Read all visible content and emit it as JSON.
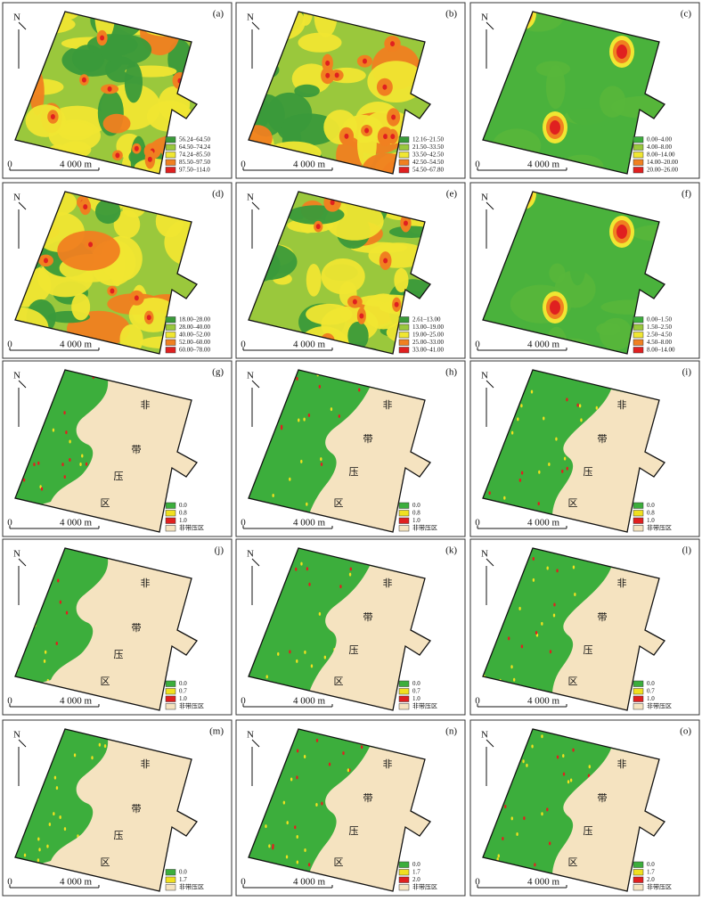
{
  "common": {
    "north": "N",
    "scale_zero": "0",
    "scale_label": "4 000 m",
    "zone_text": [
      "非",
      "带",
      "压",
      "区"
    ]
  },
  "panels": [
    {
      "label": "(a)",
      "legend": [
        {
          "label": "56.24–64.50",
          "color": "#3a9a3a"
        },
        {
          "label": "64.50–74.24",
          "color": "#9ac83c"
        },
        {
          "label": "74.24–85.50",
          "color": "#f0e632"
        },
        {
          "label": "85.50–97.50",
          "color": "#f08020"
        },
        {
          "label": "97.50–114.0",
          "color": "#e02020"
        }
      ]
    },
    {
      "label": "(b)",
      "legend": [
        {
          "label": "12.16–21.50",
          "color": "#3a9a3a"
        },
        {
          "label": "21.50–33.50",
          "color": "#9ac83c"
        },
        {
          "label": "33.50–42.50",
          "color": "#f0e632"
        },
        {
          "label": "42.50–54.50",
          "color": "#f08020"
        },
        {
          "label": "54.50–67.80",
          "color": "#e02020"
        }
      ]
    },
    {
      "label": "(c)",
      "legend": [
        {
          "label": "0.00–4.00",
          "color": "#3cae3c"
        },
        {
          "label": "4.00–8.00",
          "color": "#9ac83c"
        },
        {
          "label": "8.00–14.00",
          "color": "#f0e632"
        },
        {
          "label": "14.00–20.00",
          "color": "#f08020"
        },
        {
          "label": "20.00–26.00",
          "color": "#e02020"
        }
      ]
    },
    {
      "label": "(d)",
      "legend": [
        {
          "label": "18.00–28.00",
          "color": "#3a9a3a"
        },
        {
          "label": "28.00–40.00",
          "color": "#9ac83c"
        },
        {
          "label": "40.00–52.00",
          "color": "#f0e632"
        },
        {
          "label": "52.00–60.00",
          "color": "#f08020"
        },
        {
          "label": "60.00–78.00",
          "color": "#e02020"
        }
      ]
    },
    {
      "label": "(e)",
      "legend": [
        {
          "label": "2.61–13.00",
          "color": "#3a9a3a"
        },
        {
          "label": "13.00–19.00",
          "color": "#9ac83c"
        },
        {
          "label": "19.00–25.00",
          "color": "#f0e632"
        },
        {
          "label": "25.00–33.00",
          "color": "#f08020"
        },
        {
          "label": "33.00–41.00",
          "color": "#e02020"
        }
      ]
    },
    {
      "label": "(f)",
      "legend": [
        {
          "label": "0.00–1.50",
          "color": "#3cae3c"
        },
        {
          "label": "1.50–2.50",
          "color": "#9ac83c"
        },
        {
          "label": "2.50–4.50",
          "color": "#f0e632"
        },
        {
          "label": "4.50–8.00",
          "color": "#f08020"
        },
        {
          "label": "8.00–14.00",
          "color": "#e02020"
        }
      ]
    },
    {
      "label": "(g)",
      "legend": [
        {
          "label": "0.0",
          "color": "#3cae3c"
        },
        {
          "label": "0.8",
          "color": "#f0e020"
        },
        {
          "label": "1.0",
          "color": "#e02020"
        },
        {
          "label": "非带压区",
          "color": "#f5e3c0"
        }
      ]
    },
    {
      "label": "(h)",
      "legend": [
        {
          "label": "0.0",
          "color": "#3cae3c"
        },
        {
          "label": "0.8",
          "color": "#f0e020"
        },
        {
          "label": "1.0",
          "color": "#e02020"
        },
        {
          "label": "非带压区",
          "color": "#f5e3c0"
        }
      ]
    },
    {
      "label": "(i)",
      "legend": [
        {
          "label": "0.0",
          "color": "#3cae3c"
        },
        {
          "label": "0.8",
          "color": "#f0e020"
        },
        {
          "label": "1.0",
          "color": "#e02020"
        },
        {
          "label": "非带压区",
          "color": "#f5e3c0"
        }
      ]
    },
    {
      "label": "(j)",
      "legend": [
        {
          "label": "0.0",
          "color": "#3cae3c"
        },
        {
          "label": "0.7",
          "color": "#f0e020"
        },
        {
          "label": "1.0",
          "color": "#e02020"
        },
        {
          "label": "非带压区",
          "color": "#f5e3c0"
        }
      ]
    },
    {
      "label": "(k)",
      "legend": [
        {
          "label": "0.0",
          "color": "#3cae3c"
        },
        {
          "label": "0.7",
          "color": "#f0e020"
        },
        {
          "label": "1.0",
          "color": "#e02020"
        },
        {
          "label": "非带压区",
          "color": "#f5e3c0"
        }
      ]
    },
    {
      "label": "(l)",
      "legend": [
        {
          "label": "0.0",
          "color": "#3cae3c"
        },
        {
          "label": "0.7",
          "color": "#f0e020"
        },
        {
          "label": "1.0",
          "color": "#e02020"
        },
        {
          "label": "非带压区",
          "color": "#f5e3c0"
        }
      ]
    },
    {
      "label": "(m)",
      "legend": [
        {
          "label": "0.0",
          "color": "#3cae3c"
        },
        {
          "label": "1.7",
          "color": "#f0e020"
        },
        {
          "label": "非带压区",
          "color": "#f5e3c0"
        }
      ]
    },
    {
      "label": "(n)",
      "legend": [
        {
          "label": "0.0",
          "color": "#3cae3c"
        },
        {
          "label": "1.7",
          "color": "#f0e020"
        },
        {
          "label": "2.0",
          "color": "#e02020"
        },
        {
          "label": "非带压区",
          "color": "#f5e3c0"
        }
      ]
    },
    {
      "label": "(o)",
      "legend": [
        {
          "label": "0.0",
          "color": "#3cae3c"
        },
        {
          "label": "1.7",
          "color": "#f0e020"
        },
        {
          "label": "2.0",
          "color": "#e02020"
        },
        {
          "label": "非带压区",
          "color": "#f5e3c0"
        }
      ]
    }
  ]
}
